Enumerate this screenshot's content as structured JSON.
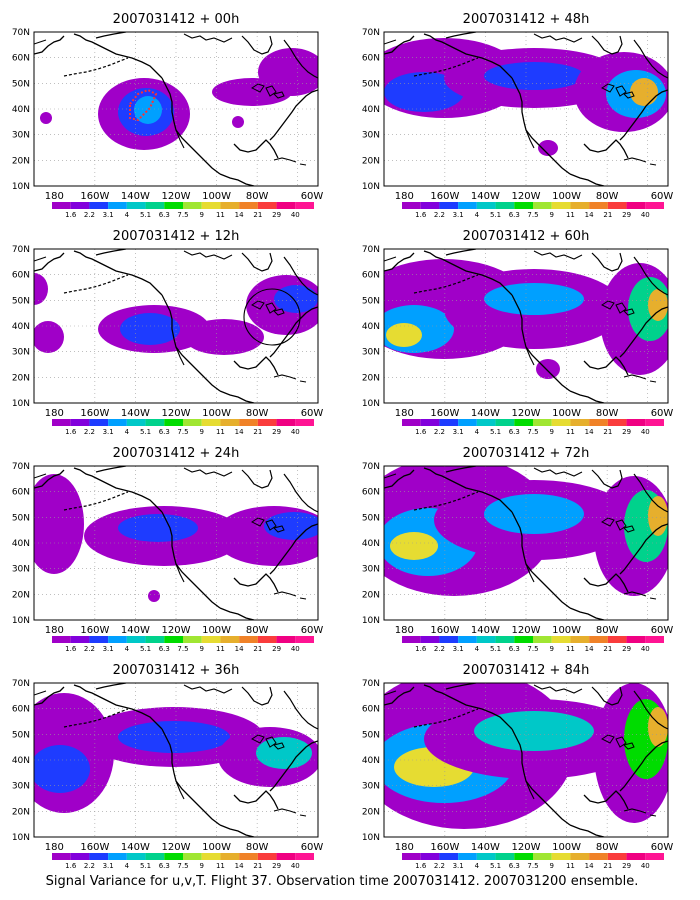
{
  "panels": [
    {
      "id": "p00",
      "title": "2007031412 + 00h",
      "lead": "00h"
    },
    {
      "id": "p48",
      "title": "2007031412 + 48h",
      "lead": "48h"
    },
    {
      "id": "p12",
      "title": "2007031412 + 12h",
      "lead": "12h"
    },
    {
      "id": "p60",
      "title": "2007031412 + 60h",
      "lead": "60h"
    },
    {
      "id": "p24",
      "title": "2007031412 + 24h",
      "lead": "24h"
    },
    {
      "id": "p72",
      "title": "2007031412 + 72h",
      "lead": "72h"
    },
    {
      "id": "p36",
      "title": "2007031412 + 36h",
      "lead": "36h"
    },
    {
      "id": "p84",
      "title": "2007031412 + 84h",
      "lead": "84h"
    }
  ],
  "axes": {
    "lat_labels": [
      "10N",
      "20N",
      "30N",
      "40N",
      "50N",
      "60N",
      "70N"
    ],
    "lon_labels": [
      "180",
      "160W",
      "140W",
      "120W",
      "100W",
      "80W",
      "60W"
    ]
  },
  "colorbar": {
    "labels": [
      "1.6",
      "2.2",
      "3.1",
      "4",
      "5.1",
      "6.3",
      "7.5",
      "9",
      "11",
      "14",
      "21",
      "29",
      "40"
    ],
    "colors": [
      "#a000c8",
      "#8200dc",
      "#1e3cff",
      "#00a0ff",
      "#00c8c8",
      "#00d28c",
      "#00dc00",
      "#a0e632",
      "#e6dc32",
      "#e6af2d",
      "#f08228",
      "#fa3c3c",
      "#f00082",
      "#ff1493"
    ]
  },
  "footer": "Signal Variance for u,v,T. Flight 37. Observation time 2007031412. 2007031200 ensemble."
}
